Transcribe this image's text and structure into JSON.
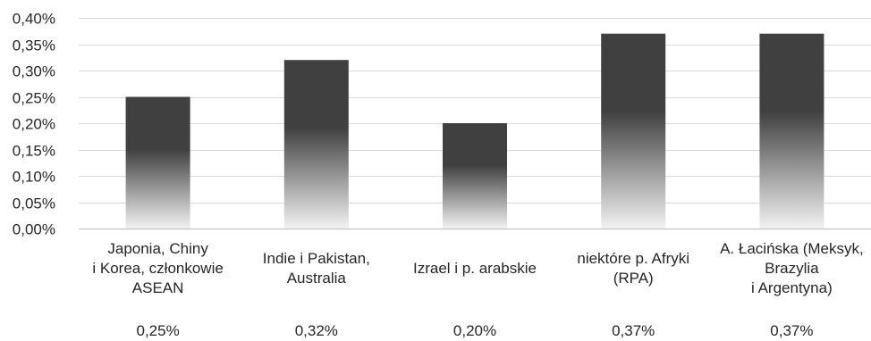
{
  "chart_data": {
    "type": "bar",
    "title": "",
    "xlabel": "",
    "ylabel": "",
    "categories": [
      [
        "Japonia, Chiny",
        "i Korea, członkowie",
        "ASEAN"
      ],
      [
        "Indie i Pakistan,",
        "Australia"
      ],
      [
        "Izrael i p. arabskie"
      ],
      [
        "niektóre p. Afryki",
        "(RPA)"
      ],
      [
        "A. Łacińska (Meksyk,",
        "Brazylia",
        "i Argentyna)"
      ]
    ],
    "values": [
      0.25,
      0.32,
      0.2,
      0.37,
      0.37
    ],
    "value_labels": [
      "0,25%",
      "0,32%",
      "0,20%",
      "0,37%",
      "0,37%"
    ],
    "ylim": [
      0,
      0.4
    ],
    "y_ticks": [
      0,
      0.05,
      0.1,
      0.15,
      0.2,
      0.25,
      0.3,
      0.35,
      0.4
    ],
    "y_tick_labels": [
      "0,00%",
      "0,05%",
      "0,10%",
      "0,15%",
      "0,20%",
      "0,25%",
      "0,30%",
      "0,35%",
      "0,40%"
    ],
    "grid": true,
    "legend": "none",
    "colors": {
      "bar_top": "#404040",
      "bar_bottom": "#f2f2f2",
      "grid": "#d9d9d9",
      "text": "#262626"
    }
  }
}
